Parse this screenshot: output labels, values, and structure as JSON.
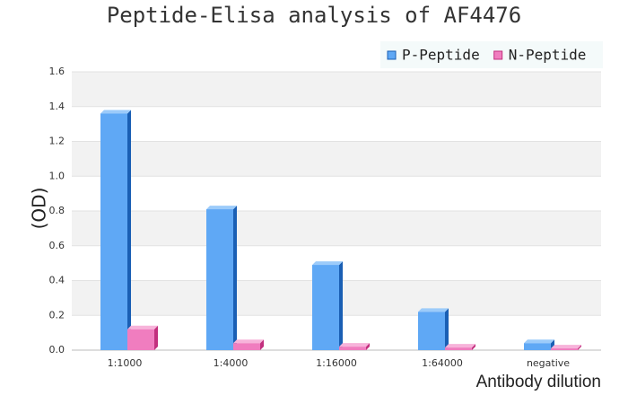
{
  "chart_data": {
    "type": "bar",
    "title": "Peptide-Elisa analysis of AF4476",
    "x_label": "Antibody dilution",
    "y_label": "(OD)",
    "categories": [
      "1:1000",
      "1:4000",
      "1:16000",
      "1:64000",
      "negative"
    ],
    "series": [
      {
        "name": "P-Peptide",
        "color": "#5fa8f5",
        "values": [
          1.36,
          0.81,
          0.49,
          0.22,
          0.04
        ]
      },
      {
        "name": "N-Peptide",
        "color": "#f07dbf",
        "values": [
          0.12,
          0.04,
          0.02,
          0.015,
          0.01
        ]
      }
    ],
    "ylim": [
      0,
      1.6
    ],
    "yticks": [
      {
        "value": 0,
        "label": "0.0"
      },
      0.2,
      0.4,
      0.6,
      0.8,
      {
        "value": 1,
        "label": "1.0"
      },
      1.2,
      1.4,
      1.6
    ],
    "grid": true,
    "legend": "top-right"
  }
}
